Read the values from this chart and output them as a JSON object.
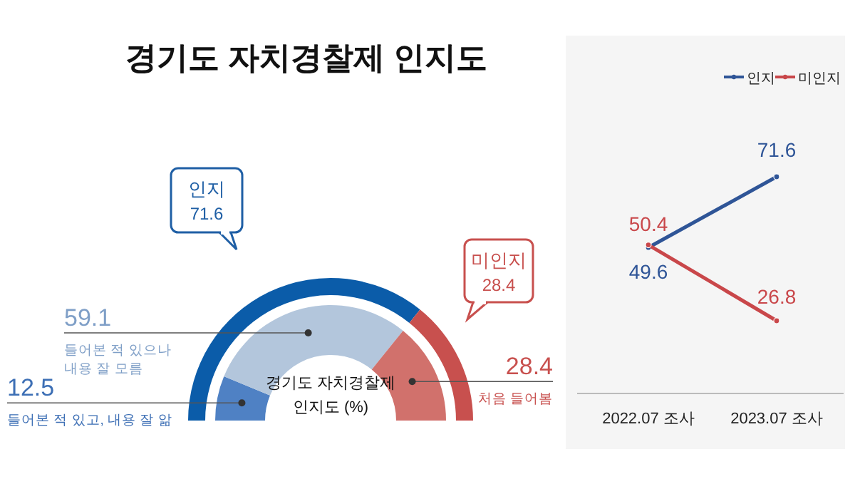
{
  "chart_data": [
    {
      "type": "donut",
      "title": "경기도 자치경찰제 인지도",
      "categories": [
        "인지",
        "미인지"
      ],
      "values": [
        71.6,
        28.4
      ],
      "colors": [
        "#0b5ca9",
        "#c8504e"
      ],
      "data_labels": true
    },
    {
      "type": "donut",
      "categories": [
        "들어본 적 있고, 내용 잘 앎",
        "들어본 적 있으나 내용 잘 모름",
        "처음 들어봄"
      ],
      "values": [
        12.5,
        59.1,
        28.4
      ],
      "colors": [
        "#4f81c4",
        "#b3c6dc",
        "#d1716c"
      ],
      "data_labels": true,
      "annotations": [
        "경기도 자치경찰제 인지도 (%)"
      ]
    },
    {
      "type": "line",
      "categories": [
        "2022.07 조사",
        "2023.07 조사"
      ],
      "data_labels": true,
      "legend": "top right",
      "marker": "circle",
      "series": [
        {
          "name": "인지",
          "color": "#2f5597",
          "values": [
            49.6,
            71.6
          ]
        },
        {
          "name": "미인지",
          "color": "#c9474a",
          "values": [
            50.4,
            26.8
          ]
        }
      ]
    }
  ]
}
